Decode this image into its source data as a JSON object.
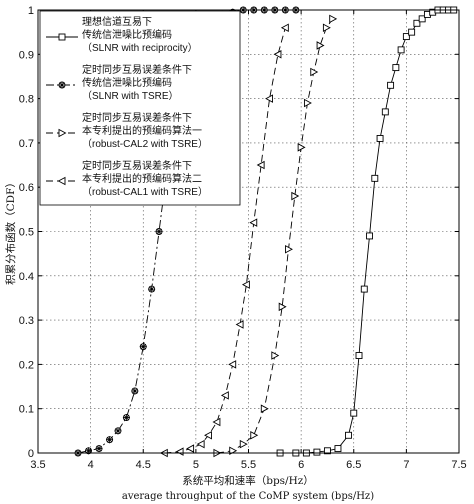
{
  "chart_data": {
    "type": "line",
    "xlabel_cn": "系统平均和速率（bps/Hz）",
    "xlabel_en": "average throughput of the CoMP system (bps/Hz)",
    "ylabel": "积累分布函数（CDF）",
    "xlim": [
      3.5,
      7.5
    ],
    "ylim": [
      0,
      1
    ],
    "xticks": [
      "3.5",
      "4",
      "4.5",
      "5",
      "5.5",
      "6",
      "6.5",
      "7",
      "7.5"
    ],
    "yticks": [
      "0",
      "0.1",
      "0.2",
      "0.3",
      "0.4",
      "0.5",
      "0.6",
      "0.7",
      "0.8",
      "0.9",
      "1"
    ],
    "grid": true,
    "legend_position": "top-left",
    "series": [
      {
        "name_lines": [
          "理想信道互易下",
          "传统信泄噪比预编码",
          "（SLNR with reciprocity）"
        ],
        "marker": "square",
        "dash": "solid",
        "x": [
          5.8,
          5.95,
          6.05,
          6.15,
          6.25,
          6.35,
          6.45,
          6.5,
          6.55,
          6.6,
          6.65,
          6.7,
          6.75,
          6.8,
          6.85,
          6.9,
          6.95,
          7.0,
          7.05,
          7.1,
          7.15,
          7.2,
          7.25,
          7.3,
          7.35,
          7.4,
          7.45
        ],
        "y": [
          0,
          0,
          0,
          0.002,
          0.005,
          0.01,
          0.04,
          0.09,
          0.22,
          0.37,
          0.49,
          0.62,
          0.71,
          0.77,
          0.83,
          0.87,
          0.91,
          0.94,
          0.95,
          0.97,
          0.98,
          0.99,
          0.995,
          1,
          1,
          1,
          1
        ]
      },
      {
        "name_lines": [
          "定时同步互易误差条件下",
          "传统信泄噪比预编码",
          "（SLNR with TSRE）"
        ],
        "marker": "star-circle",
        "dash": "dashdot",
        "x": [
          3.88,
          3.98,
          4.08,
          4.18,
          4.26,
          4.34,
          4.42,
          4.5,
          4.58,
          4.65,
          4.72,
          4.8,
          4.88,
          4.96,
          5.05,
          5.15,
          5.25,
          5.35,
          5.45,
          5.55,
          5.65,
          5.75,
          5.85,
          5.95
        ],
        "y": [
          0,
          0.005,
          0.01,
          0.03,
          0.05,
          0.08,
          0.14,
          0.24,
          0.37,
          0.5,
          0.63,
          0.75,
          0.85,
          0.92,
          0.96,
          0.98,
          0.99,
          0.995,
          1,
          1,
          1,
          1,
          1,
          1
        ]
      },
      {
        "name_lines": [
          "定时同步互易误差条件下",
          "本专利提出的预编码算法一",
          "（robust-CAL2 with TSRE）"
        ],
        "marker": "triangle-right",
        "dash": "dashed",
        "x": [
          5.2,
          5.35,
          5.45,
          5.55,
          5.65,
          5.75,
          5.82,
          5.88,
          5.94,
          6.0,
          6.06,
          6.12,
          6.18,
          6.24,
          6.3
        ],
        "y": [
          0,
          0.005,
          0.02,
          0.04,
          0.1,
          0.22,
          0.33,
          0.46,
          0.58,
          0.69,
          0.79,
          0.86,
          0.92,
          0.96,
          0.98
        ]
      },
      {
        "name_lines": [
          "定时同步互易误差条件下",
          "本专利提出的预编码算法二",
          "（robust-CAL1 with TSRE）"
        ],
        "marker": "triangle-left",
        "dash": "dashed",
        "x": [
          4.7,
          4.85,
          4.95,
          5.05,
          5.12,
          5.2,
          5.28,
          5.35,
          5.42,
          5.48,
          5.55,
          5.62,
          5.7,
          5.78,
          5.85
        ],
        "y": [
          0,
          0.003,
          0.01,
          0.02,
          0.04,
          0.07,
          0.13,
          0.2,
          0.29,
          0.38,
          0.52,
          0.65,
          0.8,
          0.9,
          0.96
        ]
      }
    ]
  }
}
